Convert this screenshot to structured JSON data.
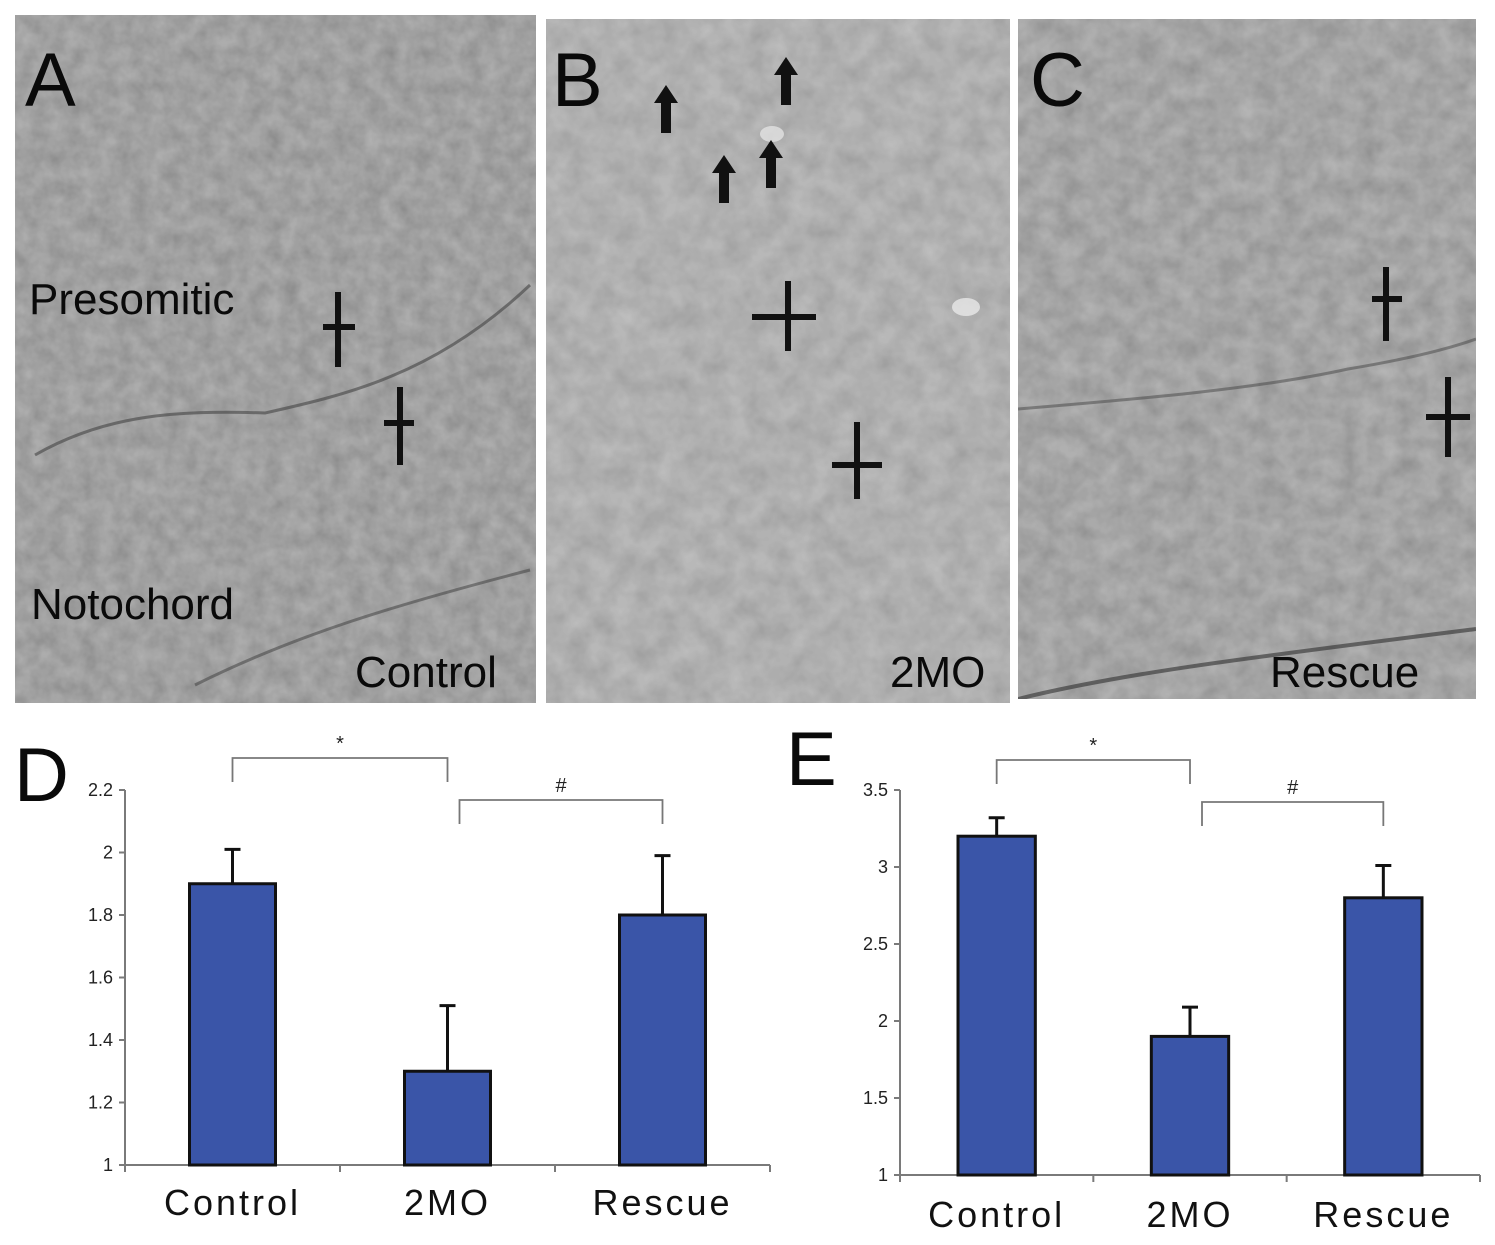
{
  "panels": [
    {
      "letter": "A",
      "caption": "Control",
      "region_labels": [
        "Presomitic",
        "Notochord"
      ],
      "base_gray": "#8a8a8a"
    },
    {
      "letter": "B",
      "caption": "2MO",
      "region_labels": [],
      "base_gray": "#9c9c9c"
    },
    {
      "letter": "C",
      "caption": "Rescue",
      "region_labels": [],
      "base_gray": "#8e8e8e"
    }
  ],
  "chart_data": [
    {
      "panel_letter": "D",
      "type": "bar",
      "categories": [
        "Control",
        "2MO",
        "Rescue"
      ],
      "values": [
        1.9,
        1.3,
        1.8
      ],
      "errors": [
        0.11,
        0.21,
        0.19
      ],
      "ylim": [
        1,
        2.2
      ],
      "yticks": [
        "1",
        "1.2",
        "1.4",
        "1.6",
        "1.8",
        "2",
        "2.2"
      ],
      "significance": [
        {
          "from": "Control",
          "to": "2MO",
          "symbol": "*"
        },
        {
          "from": "2MO",
          "to": "Rescue",
          "symbol": "#"
        }
      ],
      "bar_color": "#3a55a8",
      "grid": false
    },
    {
      "panel_letter": "E",
      "type": "bar",
      "categories": [
        "Control",
        "2MO",
        "Rescue"
      ],
      "values": [
        3.2,
        1.9,
        2.8
      ],
      "errors": [
        0.12,
        0.19,
        0.21
      ],
      "ylim": [
        1,
        3.5
      ],
      "yticks": [
        "1",
        "1.5",
        "2",
        "2.5",
        "3",
        "3.5"
      ],
      "significance": [
        {
          "from": "Control",
          "to": "2MO",
          "symbol": "*"
        },
        {
          "from": "2MO",
          "to": "Rescue",
          "symbol": "#"
        }
      ],
      "bar_color": "#3a55a8",
      "grid": false
    }
  ]
}
